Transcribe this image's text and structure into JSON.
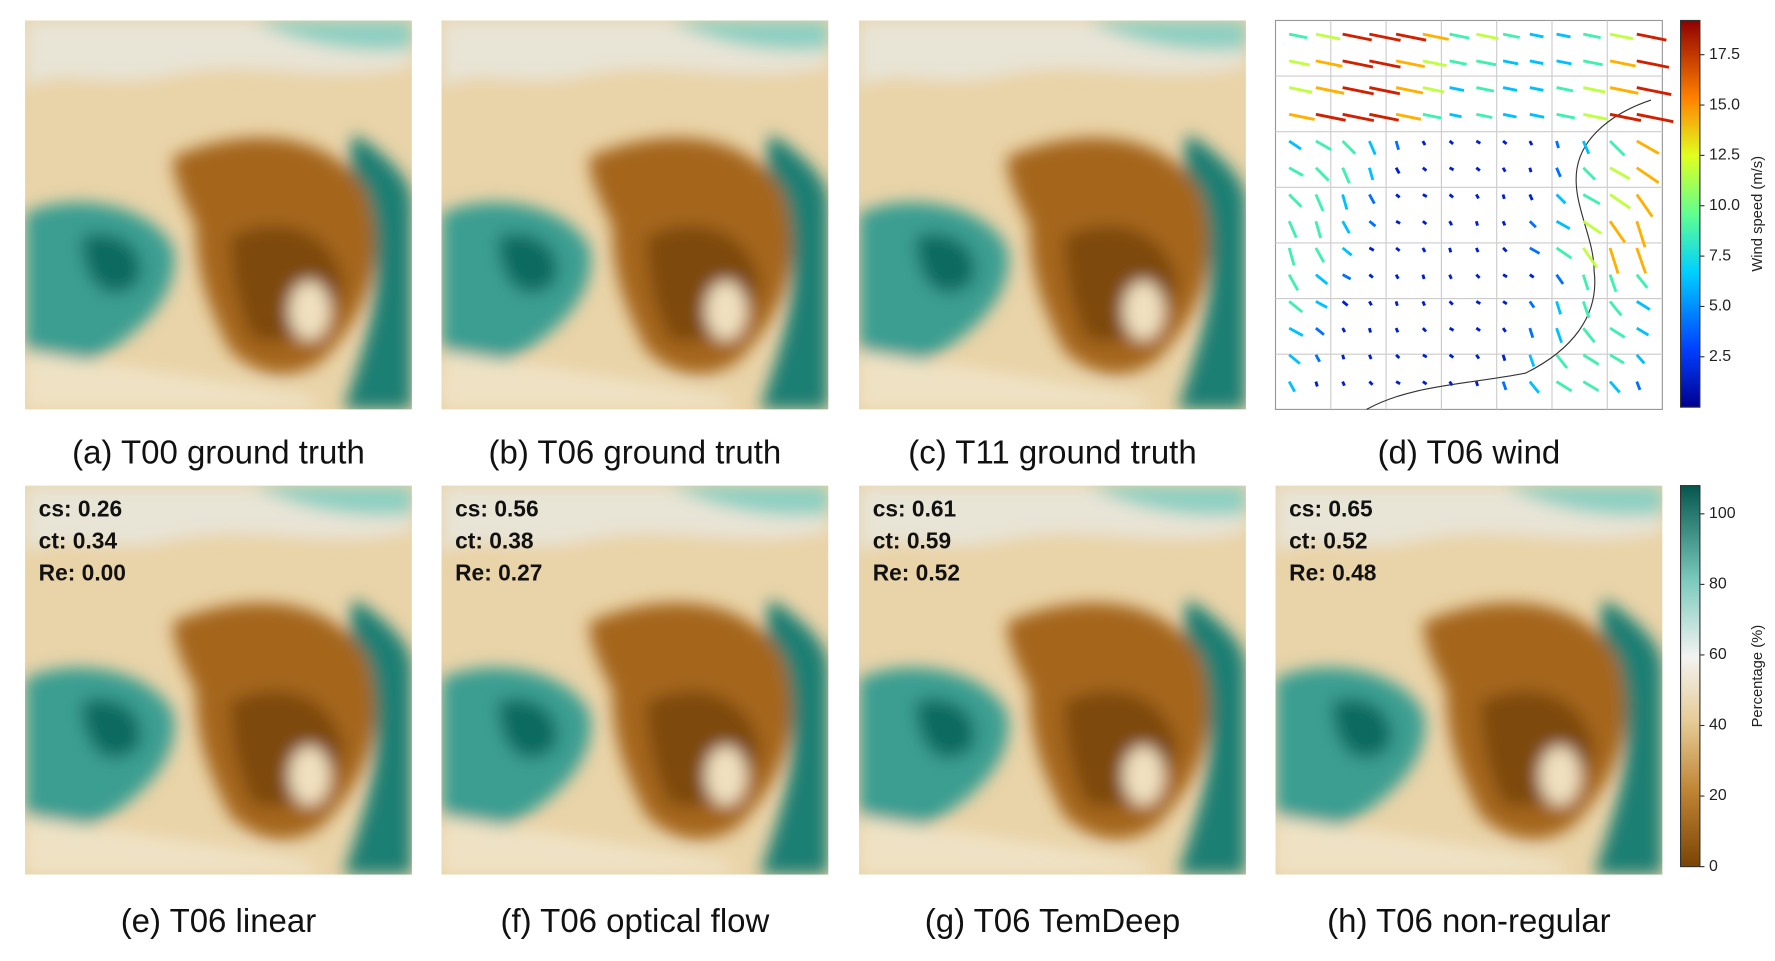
{
  "panels": [
    {
      "caption": "(a) T00 ground truth"
    },
    {
      "caption": "(b) T06 ground truth"
    },
    {
      "caption": "(c) T11 ground truth"
    },
    {
      "caption": "(d) T06 wind"
    },
    {
      "caption": "(e) T06 linear",
      "metrics": [
        "cs: 0.26",
        "ct:  0.34",
        "Re: 0.00"
      ]
    },
    {
      "caption": "(f) T06 optical flow",
      "metrics": [
        "cs: 0.56",
        "ct:  0.38",
        "Re: 0.27"
      ]
    },
    {
      "caption": "(g) T06 TemDeep",
      "metrics": [
        "cs: 0.61",
        "ct:  0.59",
        "Re: 0.52"
      ]
    },
    {
      "caption": "(h) T06 non-regular",
      "metrics": [
        "cs: 0.65",
        "ct:  0.52",
        "Re: 0.48"
      ]
    }
  ],
  "colorbars": [
    {
      "label": "Wind speed (m/s)",
      "lim": [
        0,
        19.2
      ],
      "ticks": [
        {
          "value": 2.5,
          "label": "2.5"
        },
        {
          "value": 5,
          "label": "5.0"
        },
        {
          "value": 7.5,
          "label": "7.5"
        },
        {
          "value": 10,
          "label": "10.0"
        },
        {
          "value": 12.5,
          "label": "12.5"
        },
        {
          "value": 15,
          "label": "15.0"
        },
        {
          "value": 17.5,
          "label": "17.5"
        }
      ]
    },
    {
      "label": "Percentage (%)",
      "lim": [
        0,
        108
      ],
      "ticks": [
        0,
        20,
        40,
        60,
        80,
        100
      ]
    }
  ]
}
